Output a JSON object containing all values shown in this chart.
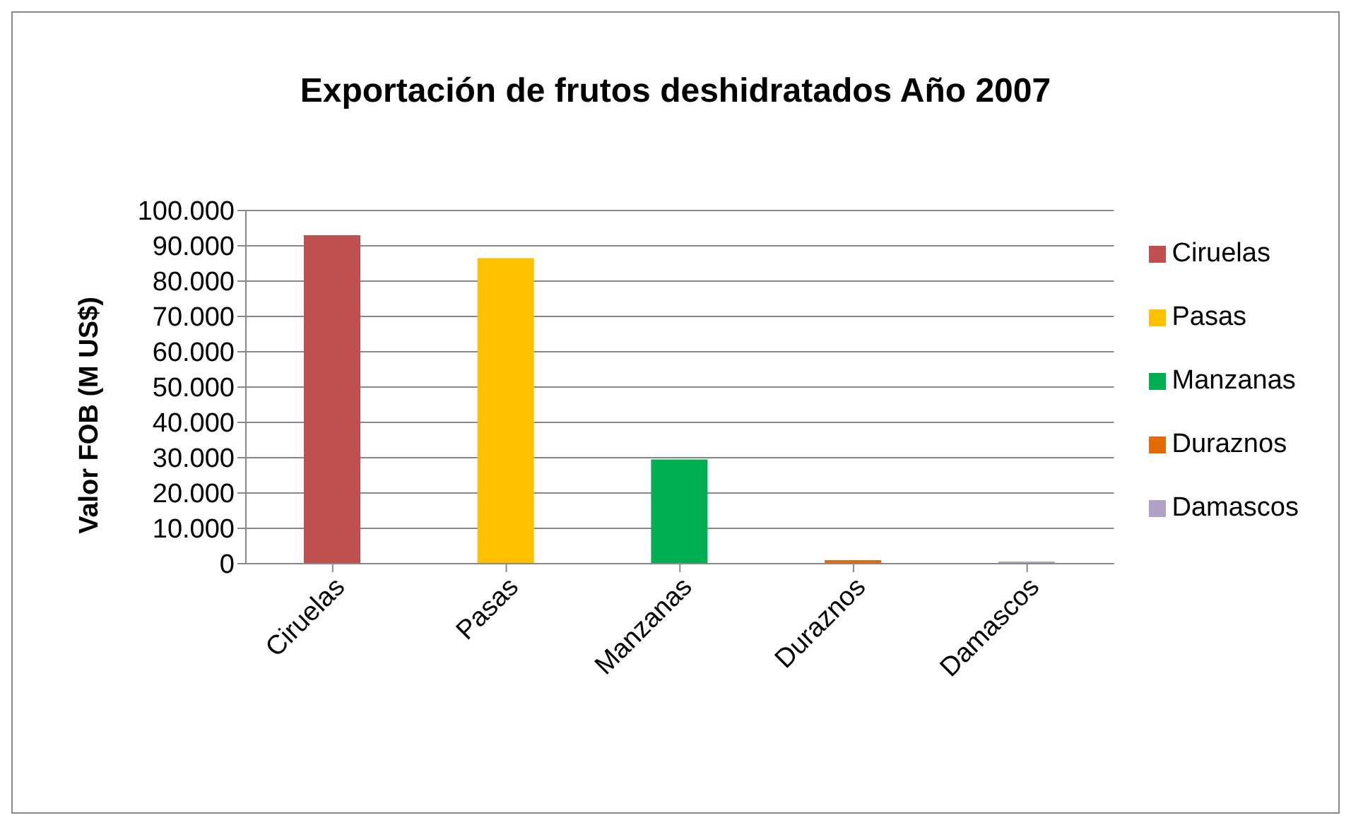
{
  "chart_data": {
    "type": "bar",
    "title": "Exportación de frutos deshidratados Año 2007",
    "ylabel": "Valor FOB (M US$)",
    "categories": [
      "Ciruelas",
      "Pasas",
      "Manzanas",
      "Duraznos",
      "Damascos"
    ],
    "series": [
      {
        "name": "Ciruelas",
        "color": "#c0504d",
        "values": [
          93000,
          null,
          null,
          null,
          null
        ]
      },
      {
        "name": "Pasas",
        "color": "#ffc000",
        "values": [
          null,
          86500,
          null,
          null,
          null
        ]
      },
      {
        "name": "Manzanas",
        "color": "#00b050",
        "values": [
          null,
          null,
          29500,
          null,
          null
        ]
      },
      {
        "name": "Duraznos",
        "color": "#e36c09",
        "values": [
          null,
          null,
          null,
          1000,
          null
        ]
      },
      {
        "name": "Damascos",
        "color": "#b3a2c7",
        "values": [
          null,
          null,
          null,
          null,
          600
        ]
      }
    ],
    "stacked": true,
    "ylim": [
      0,
      100000
    ],
    "yticks": [
      {
        "value": 0,
        "label": "0"
      },
      {
        "value": 10000,
        "label": "10.000"
      },
      {
        "value": 20000,
        "label": "20.000"
      },
      {
        "value": 30000,
        "label": "30.000"
      },
      {
        "value": 40000,
        "label": "40.000"
      },
      {
        "value": 50000,
        "label": "50.000"
      },
      {
        "value": 60000,
        "label": "60.000"
      },
      {
        "value": 70000,
        "label": "70.000"
      },
      {
        "value": 80000,
        "label": "80.000"
      },
      {
        "value": 90000,
        "label": "90.000"
      },
      {
        "value": 100000,
        "label": "100.000"
      }
    ],
    "grid": "y",
    "legend": "right"
  }
}
